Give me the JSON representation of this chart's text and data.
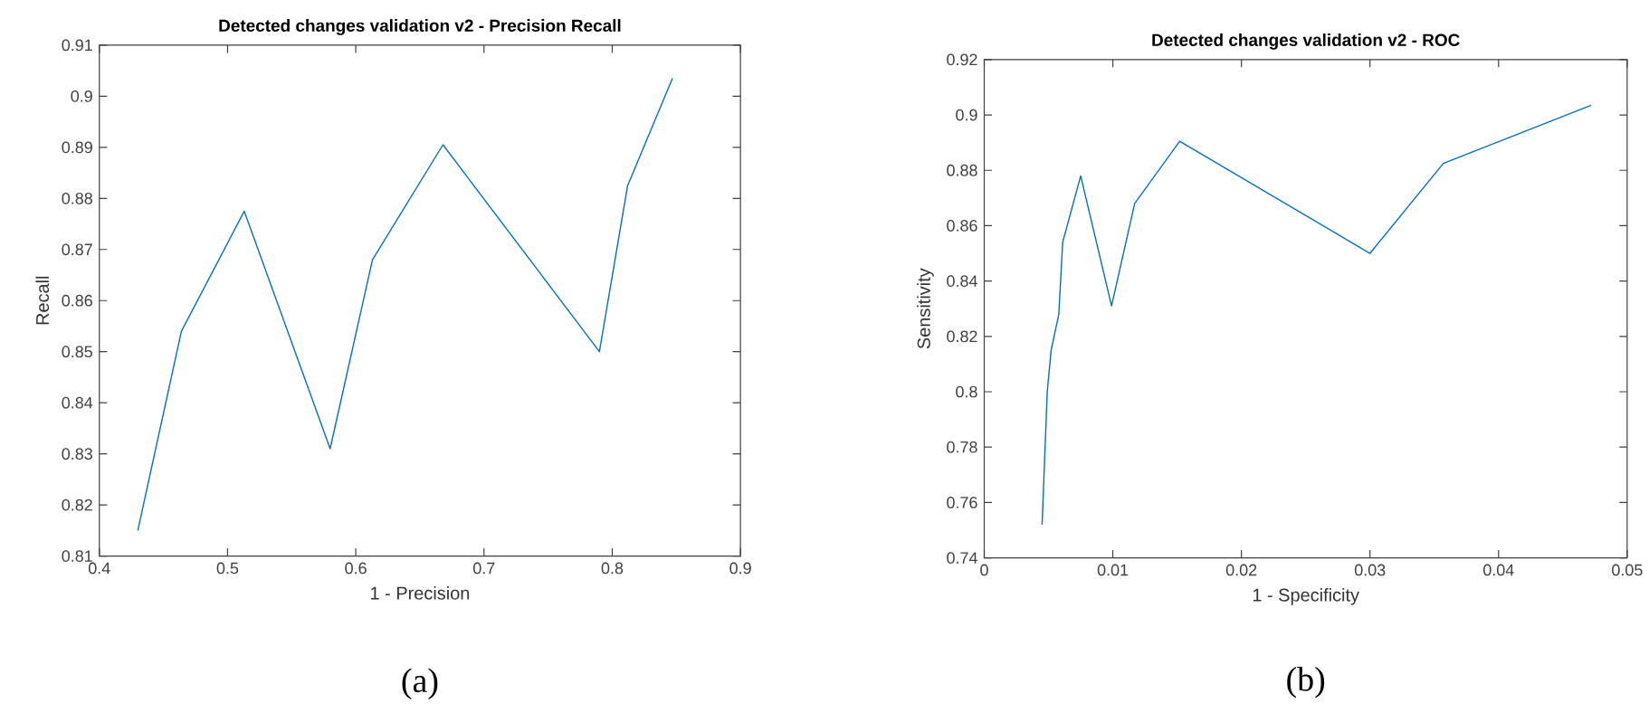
{
  "chart_data": [
    {
      "type": "line",
      "title": "Detected changes validation v2 - Precision Recall",
      "xlabel": "1 - Precision",
      "ylabel": "Recall",
      "annotations": [
        "(a)"
      ],
      "x": [
        0.43,
        0.464,
        0.513,
        0.58,
        0.613,
        0.668,
        0.79,
        0.812,
        0.847
      ],
      "series": [
        {
          "color": "#0072bd",
          "values": [
            0.815,
            0.854,
            0.8775,
            0.831,
            0.868,
            0.8905,
            0.85,
            0.8825,
            0.9035
          ]
        }
      ],
      "xlim": [
        0.4,
        0.9
      ],
      "xticks": [
        0.4,
        0.5,
        0.6,
        0.7,
        0.8,
        0.9
      ],
      "ylim": [
        0.81,
        0.91
      ],
      "yticks": [
        0.81,
        0.82,
        0.83,
        0.84,
        0.85,
        0.86,
        0.87,
        0.88,
        0.89,
        0.9,
        0.91
      ],
      "grid": false
    },
    {
      "type": "line",
      "title": "Detected changes validation v2 - ROC",
      "xlabel": "1 - Specificity",
      "ylabel": "Sensitivity",
      "annotations": [
        "(b)"
      ],
      "x": [
        0.0045,
        0.0049,
        0.0052,
        0.0058,
        0.0061,
        0.0075,
        0.0099,
        0.0117,
        0.0152,
        0.03,
        0.0357,
        0.0472
      ],
      "series": [
        {
          "color": "#0072bd",
          "values": [
            0.752,
            0.8,
            0.815,
            0.828,
            0.854,
            0.878,
            0.831,
            0.868,
            0.8905,
            0.85,
            0.8825,
            0.9035
          ]
        }
      ],
      "xlim": [
        0,
        0.05
      ],
      "xticks": [
        0,
        0.01,
        0.02,
        0.03,
        0.04,
        0.05
      ],
      "ylim": [
        0.74,
        0.92
      ],
      "yticks": [
        0.74,
        0.76,
        0.78,
        0.8,
        0.82,
        0.84,
        0.86,
        0.88,
        0.9,
        0.92
      ],
      "grid": false
    }
  ]
}
